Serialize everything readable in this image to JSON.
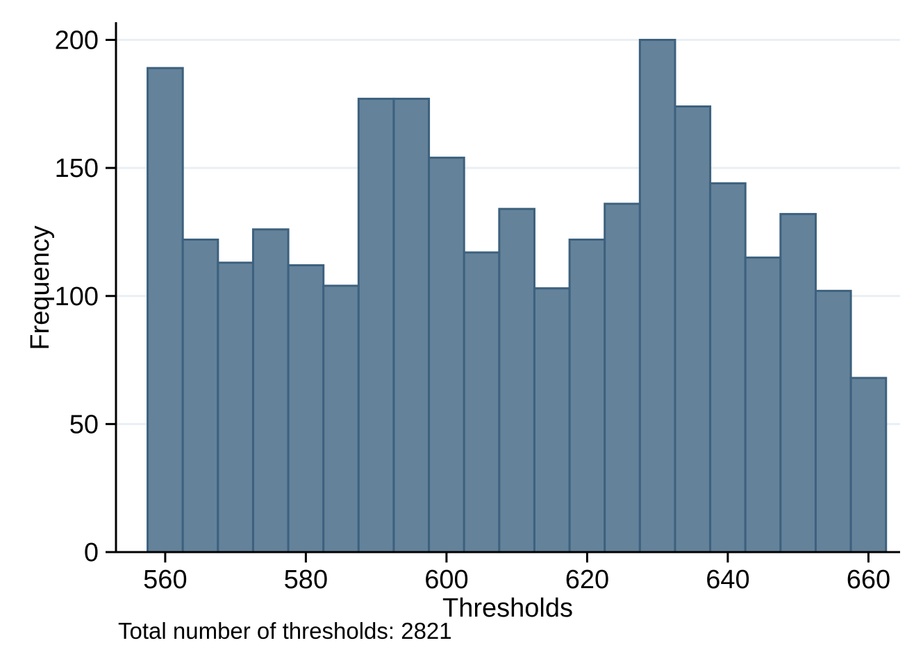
{
  "chart_data": {
    "type": "bar",
    "subtype": "histogram",
    "title": "",
    "xlabel": "Thresholds",
    "ylabel": "Frequency",
    "note": "Total number of thresholds: 2821",
    "total_count": 2821,
    "bin_start": 557.5,
    "bin_width": 5,
    "values": [
      189,
      122,
      113,
      126,
      112,
      104,
      177,
      177,
      154,
      117,
      134,
      103,
      122,
      136,
      200,
      174,
      144,
      115,
      132,
      102,
      68
    ],
    "bin_edges": [
      557.5,
      562.5,
      567.5,
      572.5,
      577.5,
      582.5,
      587.5,
      592.5,
      597.5,
      602.5,
      607.5,
      612.5,
      617.5,
      622.5,
      627.5,
      632.5,
      637.5,
      642.5,
      647.5,
      652.5,
      657.5,
      662.5
    ],
    "x_ticks": [
      560,
      580,
      600,
      620,
      640,
      660
    ],
    "y_ticks": [
      0,
      50,
      100,
      150,
      200
    ],
    "xlim": [
      553.0,
      664.5
    ],
    "ylim": [
      0,
      200
    ],
    "grid": "horizontal",
    "legend": "none",
    "colors": {
      "bar_fill": "#64829a",
      "bar_stroke": "#3d617e",
      "grid": "#e9eff4",
      "axis": "#000000",
      "text": "#000000",
      "background": "#ffffff"
    }
  }
}
